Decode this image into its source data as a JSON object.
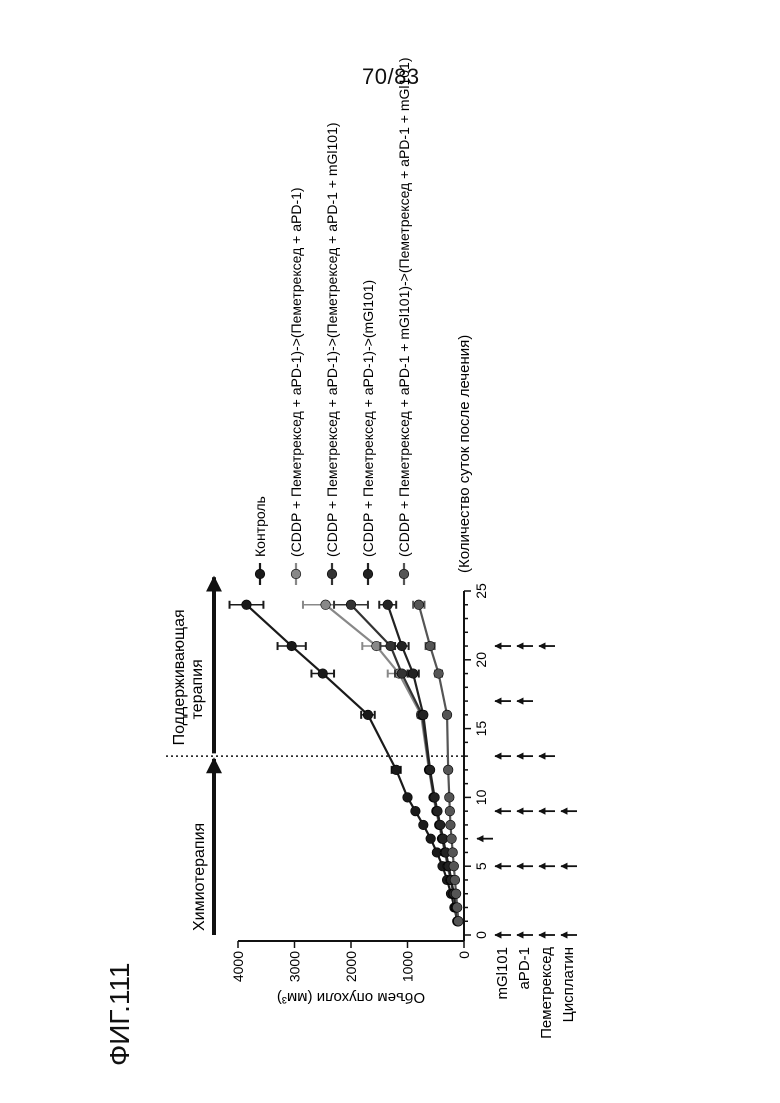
{
  "page_number": "70/83",
  "figure_label": "ФИГ.111",
  "phases": {
    "chemo": "Химиотерапия",
    "maintenance_line1": "Поддерживающая",
    "maintenance_line2": "терапия"
  },
  "drug_rows": [
    {
      "name": "mGl101",
      "days": [
        0,
        5,
        9,
        13,
        17,
        21
      ]
    },
    {
      "name": "aPD-1",
      "days": [
        0,
        5,
        9,
        13,
        17,
        21
      ]
    },
    {
      "name": "Пеметрексед",
      "days": [
        0,
        5,
        9,
        13,
        21
      ]
    },
    {
      "name": "Цисплатин",
      "days": [
        0,
        5,
        9
      ]
    }
  ],
  "drug_extra_arrow": {
    "row": "mGl101",
    "day": 7,
    "note": "small arrow above mGl101 row"
  },
  "chart_data": {
    "type": "line",
    "title": "",
    "xlabel": "(Количество суток после лечения)",
    "ylabel": "Объем опухоли (мм³)",
    "xlim": [
      0,
      25
    ],
    "ylim": [
      0,
      4000
    ],
    "xticks": [
      0,
      5,
      10,
      15,
      20,
      25
    ],
    "yticks": [
      0,
      1000,
      2000,
      3000,
      4000
    ],
    "ytick_labels": [
      "0",
      "1000",
      "2000",
      "3000",
      "4000"
    ],
    "vline_day": 13,
    "legend_placement": "top-right",
    "series": [
      {
        "name": "Контроль",
        "color": "#1a1a1a",
        "x": [
          1,
          2,
          3,
          4,
          5,
          6,
          7,
          8,
          9,
          10,
          12,
          16,
          19,
          21,
          24
        ],
        "y": [
          120,
          170,
          230,
          300,
          380,
          480,
          590,
          720,
          860,
          1000,
          1200,
          1700,
          2500,
          3050,
          3850
        ],
        "err": [
          0,
          0,
          0,
          0,
          0,
          0,
          0,
          0,
          0,
          0,
          80,
          120,
          200,
          250,
          300
        ]
      },
      {
        "name": "(CDDP + Пеметрексед + aPD-1)->(Пеметрексед + aPD-1)",
        "color": "#888888",
        "x": [
          1,
          2,
          3,
          4,
          5,
          6,
          7,
          8,
          9,
          10,
          12,
          16,
          19,
          21,
          24
        ],
        "y": [
          110,
          150,
          190,
          240,
          290,
          340,
          390,
          440,
          490,
          540,
          620,
          760,
          1150,
          1550,
          2450
        ],
        "err": [
          0,
          0,
          0,
          0,
          0,
          0,
          0,
          0,
          0,
          0,
          50,
          60,
          200,
          250,
          400
        ]
      },
      {
        "name": "(CDDP + Пеметрексед + aPD-1)->(Пеметрексед + aPD-1 + mGl101)",
        "color": "#333333",
        "x": [
          1,
          2,
          3,
          4,
          5,
          6,
          7,
          8,
          9,
          10,
          12,
          16,
          19,
          21,
          24
        ],
        "y": [
          105,
          145,
          185,
          230,
          280,
          330,
          380,
          430,
          480,
          530,
          610,
          740,
          1100,
          1300,
          2000
        ],
        "err": [
          0,
          0,
          0,
          0,
          0,
          0,
          0,
          0,
          0,
          0,
          40,
          60,
          120,
          180,
          300
        ]
      },
      {
        "name": "(CDDP + Пеметрексед + aPD-1)->(mGl101)",
        "color": "#222222",
        "x": [
          1,
          2,
          3,
          4,
          5,
          6,
          7,
          8,
          9,
          10,
          12,
          16,
          19,
          21,
          24
        ],
        "y": [
          100,
          140,
          180,
          225,
          270,
          320,
          370,
          420,
          470,
          520,
          600,
          720,
          900,
          1100,
          1350
        ],
        "err": [
          0,
          0,
          0,
          0,
          0,
          0,
          0,
          0,
          0,
          0,
          40,
          50,
          100,
          120,
          150
        ]
      },
      {
        "name": "(CDDP + Пеметрексед + aPD-1 + mGl101)->(Пеметрексед + aPD-1 + mGl101)",
        "color": "#555555",
        "x": [
          1,
          2,
          3,
          4,
          5,
          6,
          7,
          8,
          9,
          10,
          12,
          16,
          19,
          21,
          24
        ],
        "y": [
          100,
          120,
          140,
          160,
          180,
          200,
          220,
          240,
          250,
          260,
          280,
          300,
          450,
          600,
          800
        ],
        "err": [
          0,
          0,
          0,
          0,
          0,
          0,
          0,
          0,
          0,
          0,
          30,
          40,
          60,
          80,
          100
        ]
      }
    ]
  }
}
